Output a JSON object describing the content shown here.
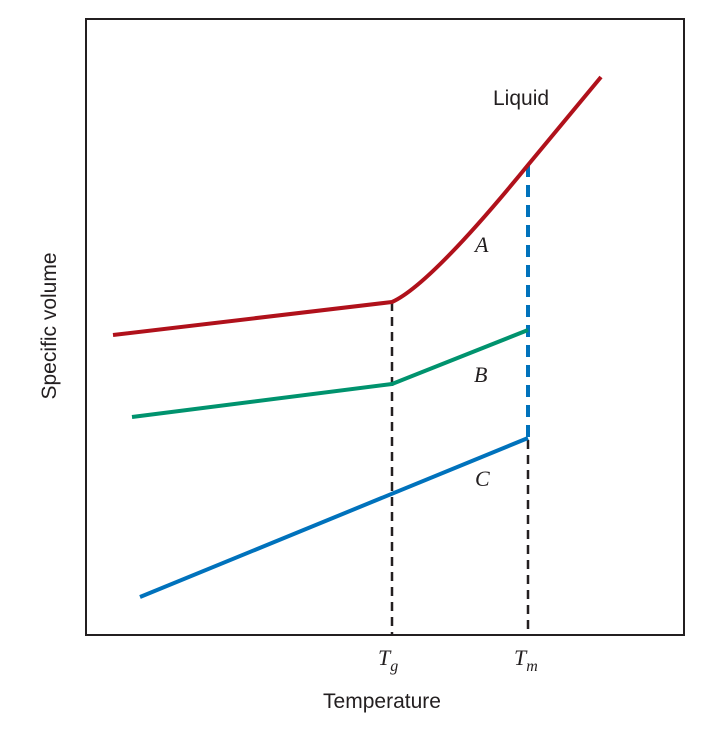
{
  "axes": {
    "xlabel": "Temperature",
    "ylabel": "Specific volume"
  },
  "ticks": {
    "tg": "T",
    "tg_sub": "g",
    "tm": "T",
    "tm_sub": "m"
  },
  "curves": {
    "liquid": {
      "label": "Liquid",
      "color": "#b0111b"
    },
    "a": {
      "label": "A",
      "color": "#b0111b"
    },
    "b": {
      "label": "B",
      "color": "#00936e"
    },
    "c": {
      "label": "C",
      "color": "#0072bc"
    }
  },
  "guide_colors": {
    "dashed": "#231f20",
    "melting_jump": "#0072bc"
  }
}
